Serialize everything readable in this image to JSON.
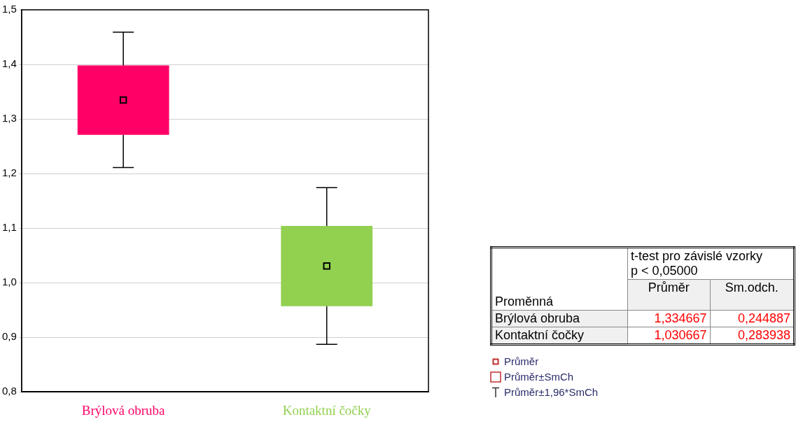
{
  "chart_data": {
    "type": "box",
    "categories": [
      "Brýlová obruba",
      "Kontaktní čočky"
    ],
    "colors": [
      "#ff0066",
      "#92d050"
    ],
    "boxes": [
      {
        "low": 1.211,
        "q1": 1.271,
        "mean": 1.334667,
        "q3": 1.398,
        "high": 1.459
      },
      {
        "low": 0.887,
        "q1": 0.957,
        "mean": 1.030667,
        "q3": 1.104,
        "high": 1.174
      }
    ],
    "ylim": [
      0.8,
      1.5
    ],
    "yticks": [
      {
        "value": 0.8,
        "label": "0,8"
      },
      {
        "value": 0.9,
        "label": "0,9"
      },
      {
        "value": 1.0,
        "label": "1,0"
      },
      {
        "value": 1.1,
        "label": "1,1"
      },
      {
        "value": 1.2,
        "label": "1,2"
      },
      {
        "value": 1.3,
        "label": "1,3"
      },
      {
        "value": 1.4,
        "label": "1,4"
      },
      {
        "value": 1.5,
        "label": "1,5"
      }
    ],
    "grid": "y",
    "legend": false,
    "marker": "square",
    "annotations": [
      "t-test pro závislé vzorky",
      "p < 0,05000",
      "Proměnná",
      "Průměr",
      "Sm.odch.",
      "Brýlová obruba",
      "1,334667",
      "0,244887",
      "Kontaktní čočky",
      "1,030667",
      "0,283938",
      "Průměr",
      "Průměr±SmCh",
      "Průměr±1,96*SmCh"
    ]
  }
}
